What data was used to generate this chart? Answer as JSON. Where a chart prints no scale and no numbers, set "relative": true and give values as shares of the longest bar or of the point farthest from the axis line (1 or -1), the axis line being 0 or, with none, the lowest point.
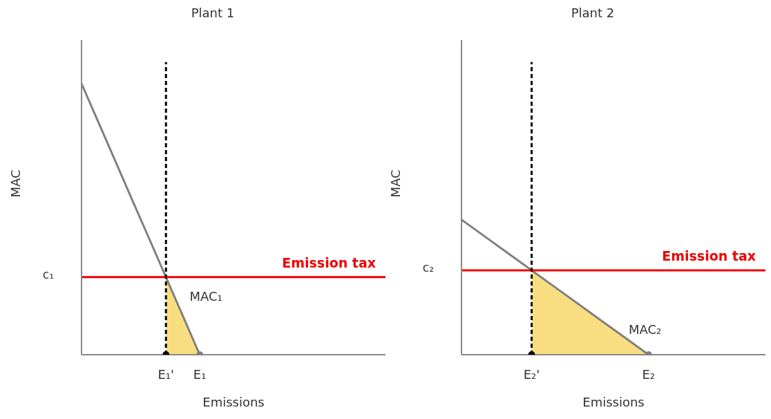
{
  "chart_data": [
    {
      "type": "line",
      "title": "Plant 1",
      "xlabel": "Emissions",
      "ylabel": "MAC",
      "relative": true,
      "categories": [
        null,
        null,
        null,
        null,
        null,
        "E₁'",
        null,
        "E₁",
        null,
        null,
        null,
        null,
        null,
        null,
        null,
        null,
        null,
        null,
        null
      ],
      "series": [
        {
          "type": "area",
          "color": "#f7d86b",
          "values": [
            null,
            null,
            null,
            null,
            null,
            0.286,
            0.143,
            0,
            null,
            null,
            null,
            null,
            null,
            null,
            null,
            null,
            null,
            null,
            null
          ]
        },
        {
          "name": "MAC₁",
          "color": "#808080",
          "values": [
            1,
            0.857,
            0.714,
            0.571,
            0.429,
            0.286,
            0.143,
            0,
            null,
            null,
            null,
            null,
            null,
            null,
            null,
            null,
            null,
            null,
            null
          ]
        },
        {
          "type": "scatter",
          "color": "#000000",
          "values": [
            null,
            null,
            null,
            null,
            null,
            0,
            null,
            null,
            null,
            null,
            null,
            null,
            null,
            null,
            null,
            null,
            null,
            null,
            null
          ]
        },
        {
          "type": "scatter",
          "color": "#808080",
          "values": [
            null,
            null,
            null,
            null,
            null,
            null,
            null,
            0,
            null,
            null,
            null,
            null,
            null,
            null,
            null,
            null,
            null,
            null,
            null
          ]
        }
      ],
      "ref_lines": [
        {
          "axis": "y",
          "value": 0.286,
          "label": "Emission tax",
          "color": "#ee0000"
        },
        {
          "axis": "x",
          "value": "E₁'",
          "color": "#000000",
          "line_style": "dashed"
        }
      ],
      "annotations": [
        "c₁"
      ]
    },
    {
      "type": "line",
      "title": "Plant 2",
      "xlabel": "Emissions",
      "ylabel": "MAC",
      "relative": true,
      "categories": [
        null,
        null,
        null,
        "E₂'",
        null,
        null,
        null,
        null,
        "E₂",
        null,
        null,
        null,
        null,
        null
      ],
      "series": [
        {
          "type": "area",
          "color": "#f7d86b",
          "values": [
            null,
            null,
            null,
            0.625,
            0.5,
            0.375,
            0.25,
            0.125,
            0,
            null,
            null,
            null,
            null,
            null
          ]
        },
        {
          "name": "MAC₂",
          "color": "#808080",
          "values": [
            1,
            0.875,
            0.75,
            0.625,
            0.5,
            0.375,
            0.25,
            0.125,
            0,
            null,
            null,
            null,
            null,
            null
          ]
        },
        {
          "type": "scatter",
          "color": "#000000",
          "values": [
            null,
            null,
            null,
            0,
            null,
            null,
            null,
            null,
            null,
            null,
            null,
            null,
            null,
            null
          ]
        },
        {
          "type": "scatter",
          "color": "#808080",
          "values": [
            null,
            null,
            null,
            null,
            null,
            null,
            null,
            null,
            0,
            null,
            null,
            null,
            null,
            null
          ]
        }
      ],
      "ref_lines": [
        {
          "axis": "y",
          "value": 0.625,
          "label": "Emission tax",
          "color": "#ee0000"
        },
        {
          "axis": "x",
          "value": "E₂'",
          "color": "#000000",
          "line_style": "dashed"
        }
      ],
      "annotations": [
        "c₂"
      ]
    }
  ]
}
